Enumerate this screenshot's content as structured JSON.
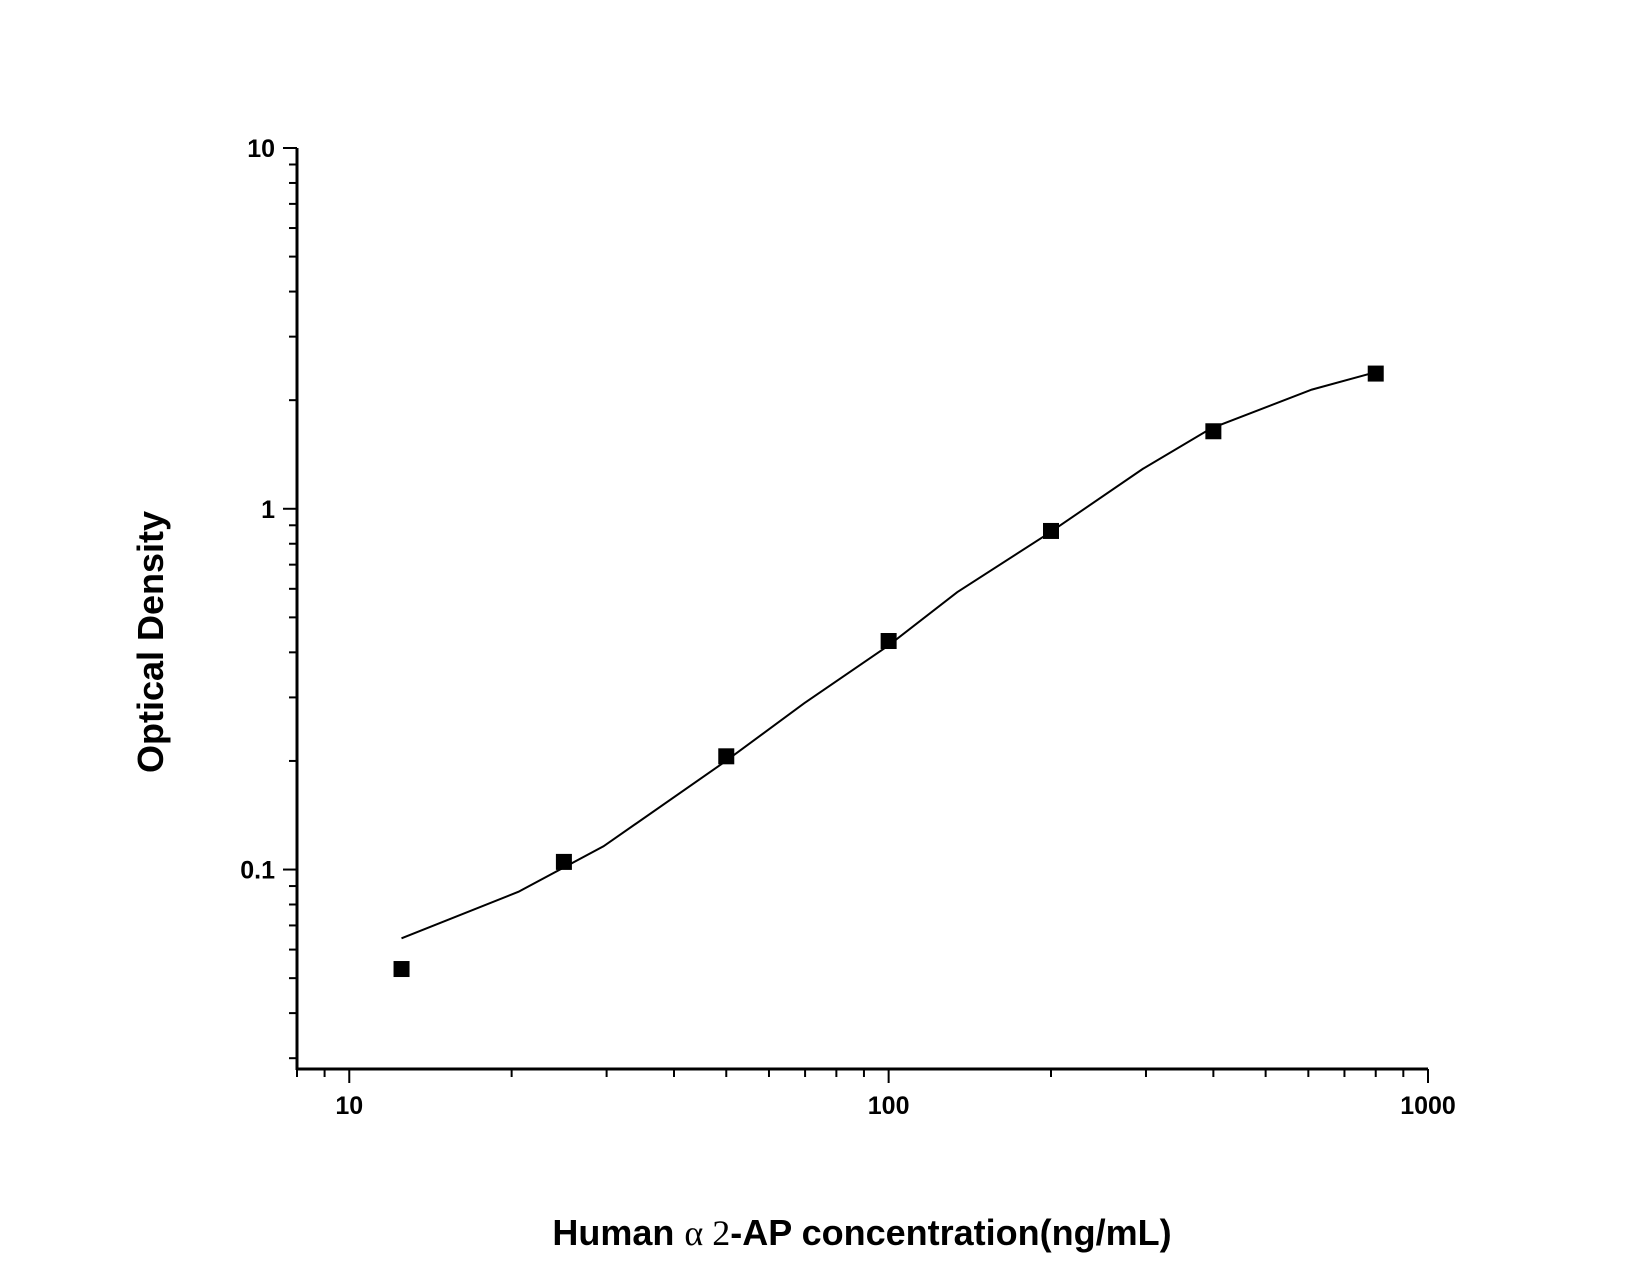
{
  "chart_data": {
    "type": "scatter",
    "title": "",
    "xlabel_parts": [
      "Human ",
      "α 2",
      "-AP concentration(ng/mL)"
    ],
    "ylabel": "Optical Density",
    "xscale": "log",
    "yscale": "log",
    "xlim": [
      8,
      1000
    ],
    "ylim": [
      0.028,
      10
    ],
    "x_ticks": [
      10,
      100,
      1000
    ],
    "x_tick_labels": [
      "10",
      "100",
      "1000"
    ],
    "y_ticks": [
      0.1,
      1,
      10
    ],
    "y_tick_labels": [
      "0.1",
      "1",
      "10"
    ],
    "grid": false,
    "legend": "none",
    "series": [
      {
        "kind": "points",
        "marker": "square",
        "color": "#000000",
        "x": [
          12.5,
          25,
          50,
          100,
          200,
          400,
          800
        ],
        "y": [
          0.053,
          0.105,
          0.206,
          0.43,
          0.868,
          1.64,
          2.37
        ]
      },
      {
        "kind": "fitted-curve",
        "color": "#000000",
        "x": [
          12.5,
          20.6,
          29.6,
          49.7,
          69.7,
          100,
          134,
          197,
          296,
          396,
          609,
          798
        ],
        "y": [
          0.0645,
          0.0868,
          0.116,
          0.199,
          0.289,
          0.418,
          0.587,
          0.851,
          1.29,
          1.67,
          2.14,
          2.39
        ]
      }
    ]
  }
}
